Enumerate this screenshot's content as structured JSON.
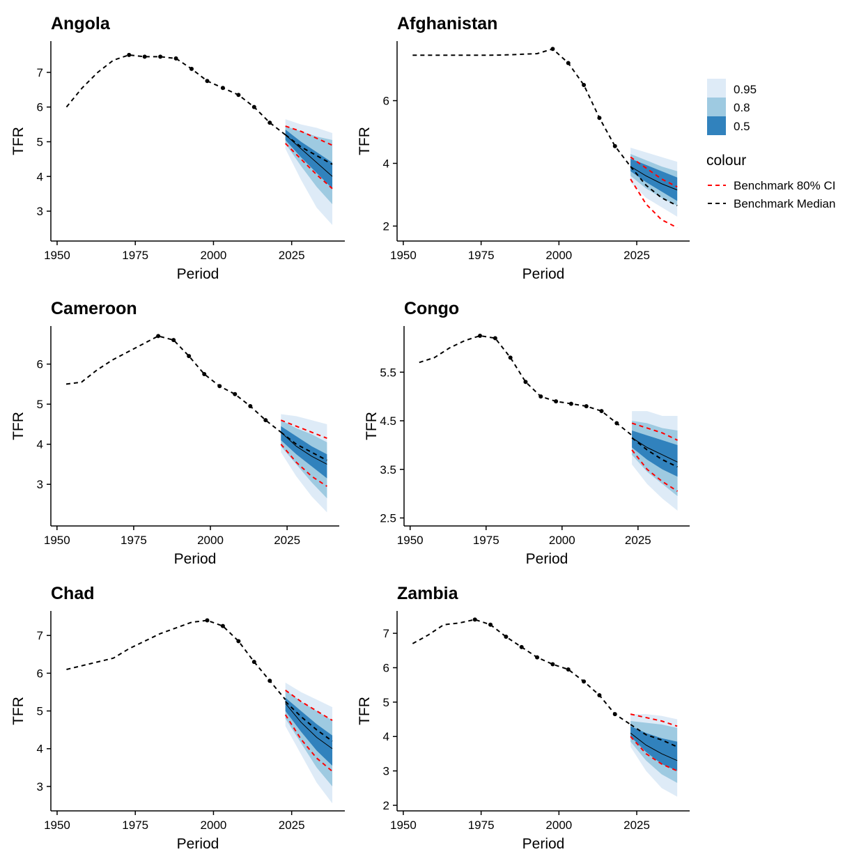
{
  "colors": {
    "band_95": "#deebf7",
    "band_80": "#9ecae1",
    "band_50": "#3182bd",
    "benchmark_ci": "#ff0000",
    "benchmark_median": "#000000",
    "median_line": "#000000"
  },
  "legend": {
    "fill_labels": [
      "0.95",
      "0.8",
      "0.5"
    ],
    "colour_title": "colour",
    "colour_labels": [
      "Benchmark 80% CI",
      "Benchmark Median"
    ]
  },
  "chart_data": [
    {
      "type": "line",
      "title": "Angola",
      "xlabel": "Period",
      "ylabel": "TFR",
      "xlim": [
        1948,
        2042
      ],
      "ylim": [
        2.3,
        7.9
      ],
      "xticks": [
        1950,
        1975,
        2000,
        2025
      ],
      "xtick_labels": [
        "1950",
        "1975",
        "2000",
        "2025"
      ],
      "yticks": [
        3,
        4,
        5,
        6,
        7
      ],
      "ytick_labels": [
        "3",
        "4",
        "5",
        "6",
        "7"
      ],
      "benchmark_median_history": {
        "x": [
          1953,
          1958,
          1963,
          1968,
          1973,
          1978,
          1983,
          1988,
          1993,
          1998,
          2003,
          2008,
          2013,
          2018,
          2023
        ],
        "y": [
          6.0,
          6.55,
          7.0,
          7.35,
          7.5,
          7.45,
          7.45,
          7.4,
          7.1,
          6.75,
          6.55,
          6.35,
          6.0,
          5.55,
          5.2
        ]
      },
      "observed": {
        "x": [
          1973,
          1978,
          1983,
          1988,
          1993,
          1998,
          2003,
          2008,
          2013,
          2018
        ],
        "y": [
          7.5,
          7.45,
          7.45,
          7.4,
          7.1,
          6.75,
          6.55,
          6.35,
          6.0,
          5.55
        ]
      },
      "forecast": {
        "x": [
          2023,
          2028,
          2033,
          2038
        ],
        "median": [
          5.2,
          4.8,
          4.4,
          4.0
        ],
        "lower_95": [
          4.8,
          3.9,
          3.1,
          2.6
        ],
        "upper_95": [
          5.65,
          5.5,
          5.4,
          5.25
        ],
        "lower_80": [
          4.95,
          4.3,
          3.7,
          3.2
        ],
        "upper_80": [
          5.45,
          5.3,
          5.15,
          5.05
        ],
        "lower_50": [
          5.05,
          4.55,
          4.1,
          3.65
        ],
        "upper_50": [
          5.35,
          5.0,
          4.7,
          4.4
        ]
      },
      "benchmark_median_forecast": [
        5.2,
        4.85,
        4.6,
        4.35
      ],
      "benchmark_ci_lower": [
        4.95,
        4.5,
        4.05,
        3.65
      ],
      "benchmark_ci_upper": [
        5.45,
        5.3,
        5.1,
        4.9
      ]
    },
    {
      "type": "line",
      "title": "Afghanistan",
      "xlabel": "Period",
      "ylabel": "TFR",
      "xlim": [
        1948,
        2042
      ],
      "ylim": [
        1.7,
        7.9
      ],
      "xticks": [
        1950,
        1975,
        2000,
        2025
      ],
      "xtick_labels": [
        "1950",
        "1975",
        "2000",
        "2025"
      ],
      "yticks": [
        2,
        4,
        6
      ],
      "ytick_labels": [
        "2",
        "4",
        "6"
      ],
      "benchmark_median_history": {
        "x": [
          1953,
          1958,
          1963,
          1968,
          1973,
          1978,
          1983,
          1988,
          1993,
          1998,
          2003,
          2008,
          2013,
          2018,
          2023
        ],
        "y": [
          7.45,
          7.45,
          7.45,
          7.45,
          7.45,
          7.45,
          7.46,
          7.48,
          7.5,
          7.65,
          7.2,
          6.5,
          5.45,
          4.55,
          3.9
        ]
      },
      "observed": {
        "x": [
          1998,
          2003,
          2008,
          2013,
          2018
        ],
        "y": [
          7.65,
          7.2,
          6.5,
          5.45,
          4.55
        ]
      },
      "forecast": {
        "x": [
          2023,
          2028,
          2033,
          2038
        ],
        "median": [
          3.9,
          3.6,
          3.35,
          3.15
        ],
        "lower_95": [
          3.4,
          2.9,
          2.6,
          2.3
        ],
        "upper_95": [
          4.5,
          4.35,
          4.2,
          4.05
        ],
        "lower_80": [
          3.6,
          3.2,
          2.9,
          2.65
        ],
        "upper_80": [
          4.3,
          4.1,
          3.9,
          3.75
        ],
        "lower_50": [
          3.75,
          3.4,
          3.1,
          2.8
        ],
        "upper_50": [
          4.15,
          3.95,
          3.75,
          3.55
        ]
      },
      "benchmark_median_forecast": [
        3.9,
        3.3,
        2.9,
        2.65
      ],
      "benchmark_ci_lower": [
        3.5,
        2.7,
        2.2,
        1.95
      ],
      "benchmark_ci_upper": [
        4.2,
        3.85,
        3.5,
        3.25
      ]
    },
    {
      "type": "line",
      "title": "Cameroon",
      "xlabel": "Period",
      "ylabel": "TFR",
      "xlim": [
        1948,
        2042
      ],
      "ylim": [
        2.1,
        6.95
      ],
      "xticks": [
        1950,
        1975,
        2000,
        2025
      ],
      "xtick_labels": [
        "1950",
        "1975",
        "2000",
        "2025"
      ],
      "yticks": [
        3,
        4,
        5,
        6
      ],
      "ytick_labels": [
        "3",
        "4",
        "5",
        "6"
      ],
      "benchmark_median_history": {
        "x": [
          1953,
          1958,
          1963,
          1968,
          1973,
          1978,
          1983,
          1988,
          1993,
          1998,
          2003,
          2008,
          2013,
          2018,
          2023
        ],
        "y": [
          5.5,
          5.55,
          5.85,
          6.1,
          6.3,
          6.5,
          6.7,
          6.6,
          6.2,
          5.75,
          5.45,
          5.25,
          4.95,
          4.6,
          4.3
        ]
      },
      "observed": {
        "x": [
          1983,
          1988,
          1993,
          1998,
          2003,
          2008,
          2013,
          2018
        ],
        "y": [
          6.7,
          6.6,
          6.2,
          5.75,
          5.45,
          5.25,
          4.95,
          4.6
        ]
      },
      "forecast": {
        "x": [
          2023,
          2028,
          2033,
          2038
        ],
        "median": [
          4.3,
          3.95,
          3.7,
          3.5
        ],
        "lower_95": [
          3.8,
          3.2,
          2.7,
          2.3
        ],
        "upper_95": [
          4.75,
          4.7,
          4.6,
          4.5
        ],
        "lower_80": [
          3.95,
          3.5,
          3.05,
          2.65
        ],
        "upper_80": [
          4.6,
          4.4,
          4.25,
          4.05
        ],
        "lower_50": [
          4.1,
          3.75,
          3.45,
          3.15
        ],
        "upper_50": [
          4.45,
          4.2,
          3.95,
          3.75
        ]
      },
      "benchmark_median_forecast": [
        4.3,
        4.0,
        3.8,
        3.6
      ],
      "benchmark_ci_lower": [
        4.0,
        3.55,
        3.2,
        2.95
      ],
      "benchmark_ci_upper": [
        4.6,
        4.45,
        4.3,
        4.15
      ]
    },
    {
      "type": "line",
      "title": "Congo",
      "xlabel": "Period",
      "ylabel": "TFR",
      "xlim": [
        1948,
        2042
      ],
      "ylim": [
        2.45,
        6.45
      ],
      "xticks": [
        1950,
        1975,
        2000,
        2025
      ],
      "xtick_labels": [
        "1950",
        "1975",
        "2000",
        "2025"
      ],
      "yticks": [
        2.5,
        3.5,
        4.5,
        5.5
      ],
      "ytick_labels": [
        "2.5",
        "3.5",
        "4.5",
        "5.5"
      ],
      "benchmark_median_history": {
        "x": [
          1953,
          1958,
          1963,
          1968,
          1973,
          1978,
          1983,
          1988,
          1993,
          1998,
          2003,
          2008,
          2013,
          2018,
          2023
        ],
        "y": [
          5.7,
          5.8,
          6.0,
          6.15,
          6.25,
          6.2,
          5.8,
          5.3,
          5.0,
          4.9,
          4.85,
          4.8,
          4.7,
          4.45,
          4.2
        ]
      },
      "observed": {
        "x": [
          1973,
          1978,
          1983,
          1988,
          1993,
          1998,
          2003,
          2008,
          2013,
          2018
        ],
        "y": [
          6.25,
          6.2,
          5.8,
          5.3,
          5.0,
          4.9,
          4.85,
          4.8,
          4.7,
          4.45
        ]
      },
      "forecast": {
        "x": [
          2023,
          2028,
          2033,
          2038
        ],
        "median": [
          4.15,
          3.95,
          3.8,
          3.65
        ],
        "lower_95": [
          3.6,
          3.2,
          2.9,
          2.65
        ],
        "upper_95": [
          4.7,
          4.7,
          4.6,
          4.6
        ],
        "lower_80": [
          3.8,
          3.45,
          3.2,
          2.95
        ],
        "upper_80": [
          4.5,
          4.45,
          4.35,
          4.3
        ],
        "lower_50": [
          3.95,
          3.7,
          3.5,
          3.35
        ],
        "upper_50": [
          4.3,
          4.2,
          4.1,
          4.0
        ]
      },
      "benchmark_median_forecast": [
        4.15,
        3.9,
        3.7,
        3.55
      ],
      "benchmark_ci_lower": [
        3.9,
        3.5,
        3.25,
        3.05
      ],
      "benchmark_ci_upper": [
        4.45,
        4.35,
        4.25,
        4.1
      ]
    },
    {
      "type": "line",
      "title": "Chad",
      "xlabel": "Period",
      "ylabel": "TFR",
      "xlim": [
        1948,
        2042
      ],
      "ylim": [
        2.5,
        7.65
      ],
      "xticks": [
        1950,
        1975,
        2000,
        2025
      ],
      "xtick_labels": [
        "1950",
        "1975",
        "2000",
        "2025"
      ],
      "yticks": [
        3,
        4,
        5,
        6,
        7
      ],
      "ytick_labels": [
        "3",
        "4",
        "5",
        "6",
        "7"
      ],
      "benchmark_median_history": {
        "x": [
          1953,
          1958,
          1963,
          1968,
          1973,
          1978,
          1983,
          1988,
          1993,
          1998,
          2003,
          2008,
          2013,
          2018,
          2023
        ],
        "y": [
          6.1,
          6.2,
          6.3,
          6.4,
          6.65,
          6.85,
          7.05,
          7.2,
          7.35,
          7.4,
          7.25,
          6.85,
          6.3,
          5.8,
          5.3
        ]
      },
      "observed": {
        "x": [
          1998,
          2003,
          2008,
          2013,
          2018
        ],
        "y": [
          7.4,
          7.25,
          6.85,
          6.3,
          5.8
        ]
      },
      "forecast": {
        "x": [
          2023,
          2028,
          2033,
          2038
        ],
        "median": [
          5.2,
          4.7,
          4.3,
          4.0
        ],
        "lower_95": [
          4.6,
          3.85,
          3.1,
          2.55
        ],
        "upper_95": [
          5.75,
          5.5,
          5.3,
          5.1
        ],
        "lower_80": [
          4.8,
          4.15,
          3.5,
          3.0
        ],
        "upper_80": [
          5.55,
          5.25,
          5.0,
          4.75
        ],
        "lower_50": [
          5.0,
          4.45,
          3.95,
          3.55
        ],
        "upper_50": [
          5.35,
          5.0,
          4.65,
          4.35
        ]
      },
      "benchmark_median_forecast": [
        5.25,
        4.85,
        4.5,
        4.2
      ],
      "benchmark_ci_lower": [
        4.9,
        4.25,
        3.75,
        3.4
      ],
      "benchmark_ci_upper": [
        5.55,
        5.25,
        5.0,
        4.75
      ]
    },
    {
      "type": "line",
      "title": "Zambia",
      "xlabel": "Period",
      "ylabel": "TFR",
      "xlim": [
        1948,
        2042
      ],
      "ylim": [
        2.0,
        7.65
      ],
      "xticks": [
        1950,
        1975,
        2000,
        2025
      ],
      "xtick_labels": [
        "1950",
        "1975",
        "2000",
        "2025"
      ],
      "yticks": [
        2,
        3,
        4,
        5,
        6,
        7
      ],
      "ytick_labels": [
        "2",
        "3",
        "4",
        "5",
        "6",
        "7"
      ],
      "benchmark_median_history": {
        "x": [
          1953,
          1958,
          1963,
          1968,
          1973,
          1978,
          1983,
          1988,
          1993,
          1998,
          2003,
          2008,
          2013,
          2018,
          2023
        ],
        "y": [
          6.7,
          6.95,
          7.25,
          7.3,
          7.4,
          7.25,
          6.9,
          6.6,
          6.3,
          6.1,
          5.95,
          5.6,
          5.2,
          4.65,
          4.35
        ]
      },
      "observed": {
        "x": [
          1973,
          1978,
          1983,
          1988,
          1993,
          1998,
          2003,
          2008,
          2013,
          2018
        ],
        "y": [
          7.4,
          7.25,
          6.9,
          6.6,
          6.3,
          6.1,
          5.95,
          5.6,
          5.2,
          4.65
        ]
      },
      "forecast": {
        "x": [
          2023,
          2028,
          2033,
          2038
        ],
        "median": [
          4.1,
          3.75,
          3.5,
          3.3
        ],
        "lower_95": [
          3.7,
          3.0,
          2.5,
          2.25
        ],
        "upper_95": [
          4.65,
          4.65,
          4.6,
          4.5
        ],
        "lower_80": [
          3.85,
          3.3,
          2.9,
          2.65
        ],
        "upper_80": [
          4.45,
          4.4,
          4.35,
          4.25
        ],
        "lower_50": [
          4.0,
          3.55,
          3.2,
          3.0
        ],
        "upper_50": [
          4.3,
          4.1,
          3.95,
          3.85
        ]
      },
      "benchmark_median_forecast": [
        4.35,
        4.05,
        3.9,
        3.7
      ],
      "benchmark_ci_lower": [
        4.0,
        3.5,
        3.2,
        3.0
      ],
      "benchmark_ci_upper": [
        4.65,
        4.55,
        4.45,
        4.3
      ]
    }
  ]
}
